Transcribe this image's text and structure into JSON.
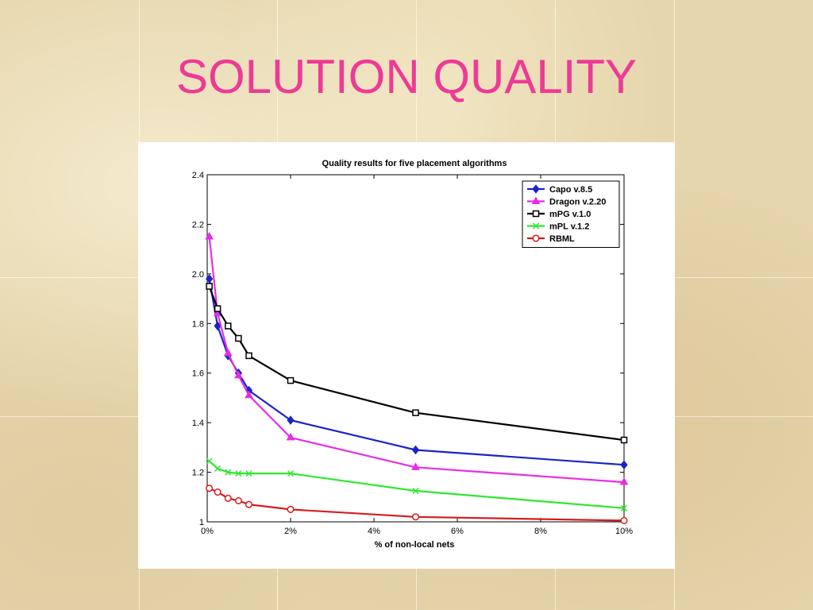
{
  "slide": {
    "title": "SOLUTION QUALITY"
  },
  "chart_data": {
    "type": "line",
    "title": "Quality results for five placement algorithms",
    "xlabel": "% of non-local nets",
    "ylabel": "",
    "xlim": [
      0,
      10
    ],
    "ylim": [
      1,
      2.4
    ],
    "x_ticks": [
      0,
      2,
      4,
      6,
      8,
      10
    ],
    "x_tick_labels": [
      "0%",
      "2%",
      "4%",
      "6%",
      "8%",
      "10%"
    ],
    "y_ticks": [
      1,
      1.2,
      1.4,
      1.6,
      1.8,
      2.0,
      2.2,
      2.4
    ],
    "y_tick_labels": [
      "1",
      "1.2",
      "1.4",
      "1.6",
      "1.8",
      "2.0",
      "2.2",
      "2.4"
    ],
    "grid": false,
    "legend_position": "top-right",
    "series": [
      {
        "name": "Capo v.8.5",
        "color": "#1a23c8",
        "marker": "diamond",
        "x": [
          0.05,
          0.25,
          0.5,
          0.75,
          1,
          2,
          5,
          10
        ],
        "y": [
          1.98,
          1.79,
          1.67,
          1.6,
          1.53,
          1.41,
          1.29,
          1.23
        ]
      },
      {
        "name": "Dragon v.2.20",
        "color": "#e62de6",
        "marker": "triangle",
        "x": [
          0.05,
          0.25,
          0.5,
          0.75,
          1,
          2,
          5,
          10
        ],
        "y": [
          2.15,
          1.84,
          1.68,
          1.59,
          1.51,
          1.34,
          1.22,
          1.16
        ]
      },
      {
        "name": "mPG v.1.0",
        "color": "#000000",
        "marker": "square",
        "x": [
          0.05,
          0.25,
          0.5,
          0.75,
          1,
          2,
          5,
          10
        ],
        "y": [
          1.95,
          1.86,
          1.79,
          1.74,
          1.67,
          1.57,
          1.44,
          1.33
        ]
      },
      {
        "name": "mPL v.1.2",
        "color": "#2ee82e",
        "marker": "x",
        "x": [
          0.05,
          0.25,
          0.5,
          0.75,
          1,
          2,
          5,
          10
        ],
        "y": [
          1.245,
          1.215,
          1.2,
          1.195,
          1.195,
          1.195,
          1.125,
          1.055
        ]
      },
      {
        "name": "RBML",
        "color": "#d41e1e",
        "marker": "circle",
        "x": [
          0.05,
          0.25,
          0.5,
          0.75,
          1,
          2,
          5,
          10
        ],
        "y": [
          1.135,
          1.12,
          1.095,
          1.085,
          1.07,
          1.05,
          1.02,
          1.005
        ]
      }
    ]
  }
}
